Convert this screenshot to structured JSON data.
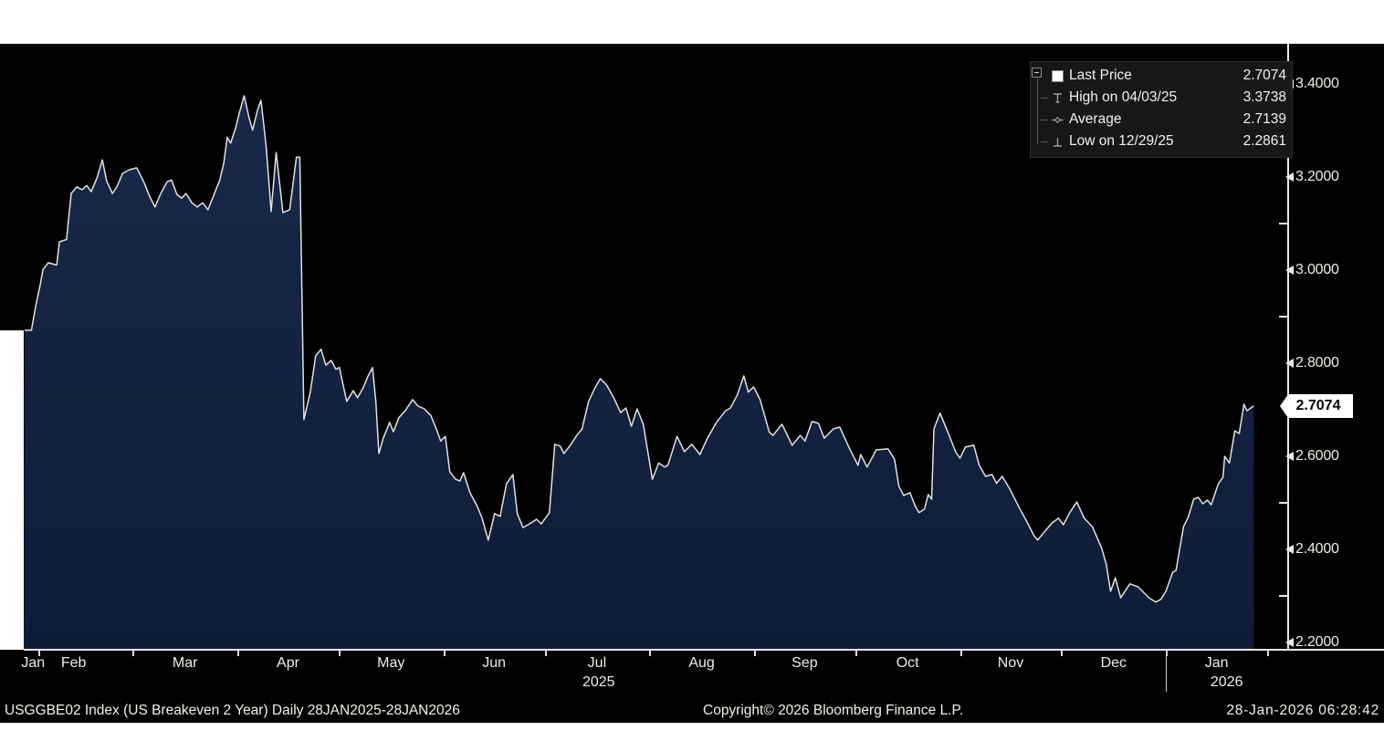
{
  "colors": {
    "page_background": "#ffffff",
    "chart_background": "#000000",
    "area_fill_top": "#18294a",
    "area_fill_bottom": "#0d1c36",
    "price_line": "#e2e2e2",
    "axis_text": "#eeeee6",
    "flag_background": "#ffffff",
    "flag_text": "#000000"
  },
  "legend": {
    "expander_icon": "tree-collapse-box",
    "items": [
      {
        "icon": "white-square-swatch",
        "label": "Last Price",
        "value": "2.7074"
      },
      {
        "icon": "high-marker",
        "label": "High on 04/03/25",
        "value": "3.3738"
      },
      {
        "icon": "average-marker",
        "label": "Average",
        "value": "2.7139"
      },
      {
        "icon": "low-marker",
        "label": "Low on 12/29/25",
        "value": "2.2861"
      }
    ]
  },
  "y_axis": {
    "majors": [
      {
        "value": 3.4,
        "label": "3.4000"
      },
      {
        "value": 3.2,
        "label": "3.2000"
      },
      {
        "value": 3.0,
        "label": "3.0000"
      },
      {
        "value": 2.8,
        "label": "2.8000"
      },
      {
        "value": 2.6,
        "label": "2.6000"
      },
      {
        "value": 2.4,
        "label": "2.4000"
      },
      {
        "value": 2.2,
        "label": "2.2000"
      }
    ],
    "minors": [
      3.3,
      3.1,
      2.9,
      2.5,
      2.3
    ],
    "last_price": {
      "value": 2.7074,
      "label": "2.7074"
    }
  },
  "x_axis": {
    "months": [
      {
        "label": "Jan",
        "center_day": 2.5
      },
      {
        "label": "Feb",
        "center_day": 14.5
      },
      {
        "label": "Mar",
        "center_day": 47.5
      },
      {
        "label": "Apr",
        "center_day": 78
      },
      {
        "label": "May",
        "center_day": 108.5
      },
      {
        "label": "Jun",
        "center_day": 139
      },
      {
        "label": "Jul",
        "center_day": 169.5
      },
      {
        "label": "Aug",
        "center_day": 200.5
      },
      {
        "label": "Sep",
        "center_day": 231
      },
      {
        "label": "Oct",
        "center_day": 261.5
      },
      {
        "label": "Nov",
        "center_day": 292
      },
      {
        "label": "Dec",
        "center_day": 322.5
      },
      {
        "label": "Jan",
        "center_day": 353
      }
    ],
    "years": [
      {
        "label": "2025",
        "center_day": 170
      },
      {
        "label": "2026",
        "center_day": 356
      }
    ],
    "tick_days": [
      4,
      32,
      63,
      93,
      124,
      154,
      185,
      216,
      246,
      277,
      307,
      338,
      368
    ],
    "year_separator_day": 338
  },
  "footer": {
    "left": "USGGBE02 Index (US Breakeven 2 Year) Daily 28JAN2025-28JAN2026",
    "center": "Copyright© 2026 Bloomberg Finance L.P.",
    "right": "28-Jan-2026 06:28:42"
  },
  "chart_data": {
    "type": "area",
    "title": "USGGBE02 Index (US Breakeven 2 Year)",
    "period": "Daily 28JAN2025-28JAN2026",
    "x_unit": "days since 28-Jan-2025",
    "xlim": [
      0,
      365
    ],
    "ylim": [
      2.2,
      3.4
    ],
    "grid": false,
    "legend_position": "top-right",
    "stats": {
      "last_price": 2.7074,
      "high": {
        "date": "04/03/25",
        "value": 3.3738
      },
      "average": 2.7139,
      "low": {
        "date": "12/29/25",
        "value": 2.2861
      }
    },
    "series": [
      {
        "name": "Last Price",
        "points": [
          [
            0,
            2.87
          ],
          [
            2,
            2.87
          ],
          [
            3.5,
            2.93
          ],
          [
            4.6,
            2.967
          ],
          [
            5.4,
            3.0
          ],
          [
            7,
            3.015
          ],
          [
            9.5,
            3.01
          ],
          [
            10.3,
            3.06
          ],
          [
            12.4,
            3.065
          ],
          [
            13.8,
            3.164
          ],
          [
            15.4,
            3.178
          ],
          [
            17,
            3.172
          ],
          [
            18.4,
            3.181
          ],
          [
            19.7,
            3.168
          ],
          [
            21.4,
            3.197
          ],
          [
            23,
            3.236
          ],
          [
            24.3,
            3.19
          ],
          [
            26,
            3.164
          ],
          [
            27.3,
            3.178
          ],
          [
            29,
            3.207
          ],
          [
            31,
            3.215
          ],
          [
            33.2,
            3.219
          ],
          [
            35.4,
            3.187
          ],
          [
            37,
            3.158
          ],
          [
            38.6,
            3.135
          ],
          [
            40.3,
            3.164
          ],
          [
            42.2,
            3.189
          ],
          [
            43.5,
            3.193
          ],
          [
            45.1,
            3.162
          ],
          [
            46.5,
            3.154
          ],
          [
            47.8,
            3.164
          ],
          [
            49.5,
            3.144
          ],
          [
            51.1,
            3.135
          ],
          [
            52.7,
            3.144
          ],
          [
            54.3,
            3.129
          ],
          [
            56.2,
            3.164
          ],
          [
            57.8,
            3.193
          ],
          [
            59,
            3.23
          ],
          [
            60,
            3.285
          ],
          [
            61,
            3.272
          ],
          [
            62.5,
            3.305
          ],
          [
            63.5,
            3.335
          ],
          [
            65,
            3.3738
          ],
          [
            66.5,
            3.325
          ],
          [
            67.5,
            3.3
          ],
          [
            69,
            3.344
          ],
          [
            70,
            3.364
          ],
          [
            71.5,
            3.266
          ],
          [
            73,
            3.125
          ],
          [
            74.5,
            3.252
          ],
          [
            76.5,
            3.123
          ],
          [
            78.5,
            3.129
          ],
          [
            80.5,
            3.242
          ],
          [
            81.5,
            3.242
          ],
          [
            82.7,
            2.678
          ],
          [
            84.6,
            2.737
          ],
          [
            86.2,
            2.815
          ],
          [
            87.8,
            2.829
          ],
          [
            89.2,
            2.795
          ],
          [
            90.8,
            2.805
          ],
          [
            92.2,
            2.786
          ],
          [
            93.2,
            2.79
          ],
          [
            95.4,
            2.717
          ],
          [
            97.3,
            2.74
          ],
          [
            98.6,
            2.725
          ],
          [
            100.3,
            2.747
          ],
          [
            101.6,
            2.77
          ],
          [
            103,
            2.79
          ],
          [
            104,
            2.717
          ],
          [
            104.9,
            2.605
          ],
          [
            106.2,
            2.638
          ],
          [
            108.1,
            2.672
          ],
          [
            109.2,
            2.652
          ],
          [
            110.8,
            2.682
          ],
          [
            112.7,
            2.697
          ],
          [
            114.9,
            2.721
          ],
          [
            116.5,
            2.707
          ],
          [
            118.4,
            2.701
          ],
          [
            120.3,
            2.687
          ],
          [
            121.9,
            2.658
          ],
          [
            123.2,
            2.632
          ],
          [
            124.6,
            2.642
          ],
          [
            125.9,
            2.566
          ],
          [
            127.6,
            2.55
          ],
          [
            128.9,
            2.546
          ],
          [
            130,
            2.564
          ],
          [
            131.9,
            2.521
          ],
          [
            133.8,
            2.495
          ],
          [
            135.4,
            2.468
          ],
          [
            137.3,
            2.419
          ],
          [
            139.2,
            2.476
          ],
          [
            140.8,
            2.47
          ],
          [
            142.7,
            2.54
          ],
          [
            144.6,
            2.56
          ],
          [
            145.9,
            2.476
          ],
          [
            147.6,
            2.446
          ],
          [
            150,
            2.456
          ],
          [
            151.6,
            2.464
          ],
          [
            153,
            2.454
          ],
          [
            155.4,
            2.478
          ],
          [
            157,
            2.625
          ],
          [
            158.6,
            2.621
          ],
          [
            159.7,
            2.605
          ],
          [
            161.6,
            2.623
          ],
          [
            163.5,
            2.644
          ],
          [
            165.1,
            2.658
          ],
          [
            167,
            2.717
          ],
          [
            168.9,
            2.746
          ],
          [
            170.5,
            2.766
          ],
          [
            172.4,
            2.752
          ],
          [
            174.6,
            2.723
          ],
          [
            176.5,
            2.693
          ],
          [
            178.1,
            2.703
          ],
          [
            179.7,
            2.664
          ],
          [
            181.4,
            2.701
          ],
          [
            183.2,
            2.668
          ],
          [
            185.9,
            2.55
          ],
          [
            187.8,
            2.585
          ],
          [
            189.5,
            2.576
          ],
          [
            190.5,
            2.58
          ],
          [
            193.2,
            2.642
          ],
          [
            195.4,
            2.609
          ],
          [
            197.6,
            2.625
          ],
          [
            200,
            2.603
          ],
          [
            202.2,
            2.638
          ],
          [
            204.9,
            2.672
          ],
          [
            207.6,
            2.697
          ],
          [
            209,
            2.703
          ],
          [
            211,
            2.73
          ],
          [
            213,
            2.772
          ],
          [
            214.3,
            2.737
          ],
          [
            215.9,
            2.748
          ],
          [
            217.8,
            2.721
          ],
          [
            220.5,
            2.652
          ],
          [
            221.6,
            2.644
          ],
          [
            224.3,
            2.668
          ],
          [
            227.3,
            2.623
          ],
          [
            229.7,
            2.644
          ],
          [
            231.1,
            2.632
          ],
          [
            233.2,
            2.674
          ],
          [
            235.1,
            2.67
          ],
          [
            236.8,
            2.638
          ],
          [
            239.5,
            2.658
          ],
          [
            241.4,
            2.662
          ],
          [
            244.1,
            2.619
          ],
          [
            246.8,
            2.58
          ],
          [
            247.6,
            2.603
          ],
          [
            249.5,
            2.576
          ],
          [
            252.2,
            2.613
          ],
          [
            255.7,
            2.615
          ],
          [
            257.6,
            2.593
          ],
          [
            258.9,
            2.535
          ],
          [
            260.3,
            2.515
          ],
          [
            262.2,
            2.521
          ],
          [
            263.8,
            2.491
          ],
          [
            264.9,
            2.478
          ],
          [
            266.5,
            2.486
          ],
          [
            267.6,
            2.517
          ],
          [
            268.6,
            2.507
          ],
          [
            269.3,
            2.658
          ],
          [
            271.1,
            2.692
          ],
          [
            273.8,
            2.644
          ],
          [
            275.7,
            2.609
          ],
          [
            277,
            2.595
          ],
          [
            278.6,
            2.619
          ],
          [
            281.1,
            2.623
          ],
          [
            282.7,
            2.58
          ],
          [
            284.6,
            2.556
          ],
          [
            286.5,
            2.56
          ],
          [
            287.8,
            2.541
          ],
          [
            289.5,
            2.556
          ],
          [
            291.9,
            2.527
          ],
          [
            294.6,
            2.488
          ],
          [
            297.3,
            2.452
          ],
          [
            298.9,
            2.429
          ],
          [
            300,
            2.419
          ],
          [
            302.7,
            2.443
          ],
          [
            304.3,
            2.456
          ],
          [
            306.2,
            2.466
          ],
          [
            307.6,
            2.452
          ],
          [
            309.5,
            2.478
          ],
          [
            311.6,
            2.501
          ],
          [
            313.8,
            2.466
          ],
          [
            316.2,
            2.448
          ],
          [
            318.9,
            2.403
          ],
          [
            320.3,
            2.368
          ],
          [
            321.6,
            2.309
          ],
          [
            323,
            2.338
          ],
          [
            324.6,
            2.295
          ],
          [
            327.3,
            2.325
          ],
          [
            329.7,
            2.319
          ],
          [
            333,
            2.295
          ],
          [
            335,
            2.2861
          ],
          [
            336.5,
            2.292
          ],
          [
            338,
            2.309
          ],
          [
            340,
            2.35
          ],
          [
            341,
            2.354
          ],
          [
            343.2,
            2.448
          ],
          [
            344.6,
            2.468
          ],
          [
            346.2,
            2.507
          ],
          [
            347.6,
            2.511
          ],
          [
            348.9,
            2.497
          ],
          [
            350.3,
            2.505
          ],
          [
            351.4,
            2.495
          ],
          [
            353.5,
            2.54
          ],
          [
            354.9,
            2.554
          ],
          [
            355.4,
            2.599
          ],
          [
            356.8,
            2.585
          ],
          [
            358.4,
            2.654
          ],
          [
            359.7,
            2.648
          ],
          [
            361.1,
            2.711
          ],
          [
            362,
            2.697
          ],
          [
            364,
            2.7074
          ]
        ]
      }
    ]
  }
}
